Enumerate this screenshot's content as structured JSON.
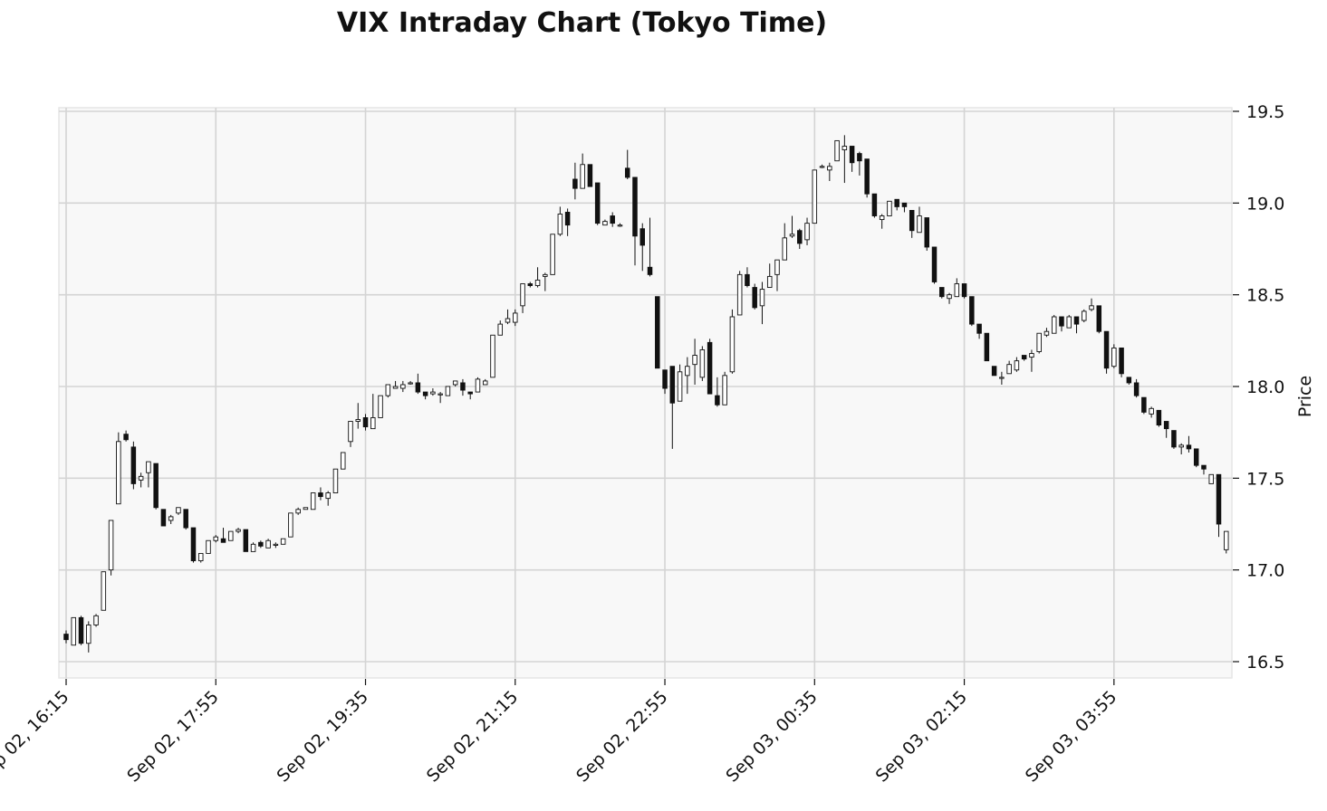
{
  "chart_data": {
    "type": "candlestick",
    "title": "VIX Intraday Chart (Tokyo Time)",
    "ylabel": "Price",
    "xlabel": "",
    "ylim": [
      16.4,
      19.52
    ],
    "yticks": [
      16.5,
      17.0,
      17.5,
      18.0,
      18.5,
      19.0,
      19.5
    ],
    "x_tick_labels": [
      "Sep 02, 16:15",
      "Sep 02, 17:55",
      "Sep 02, 19:35",
      "Sep 02, 21:15",
      "Sep 02, 22:55",
      "Sep 03, 00:35",
      "Sep 03, 02:15",
      "Sep 03, 03:55"
    ],
    "x_tick_indices": [
      0,
      20,
      40,
      60,
      80,
      100,
      120,
      140
    ],
    "interval_minutes": 5,
    "grid": true,
    "colors": {
      "up": "#ffffff",
      "down": "#111111",
      "edge": "#111111",
      "plot_bg": "#f8f8f8",
      "grid": "#d4d4d4"
    },
    "ohlc": [
      [
        16.65,
        16.67,
        16.6,
        16.62
      ],
      [
        16.59,
        16.74,
        16.59,
        16.74
      ],
      [
        16.74,
        16.75,
        16.59,
        16.6
      ],
      [
        16.6,
        16.72,
        16.55,
        16.7
      ],
      [
        16.7,
        16.76,
        16.69,
        16.75
      ],
      [
        16.78,
        16.99,
        16.78,
        16.99
      ],
      [
        17.0,
        17.27,
        16.97,
        17.27
      ],
      [
        17.36,
        17.75,
        17.36,
        17.7
      ],
      [
        17.74,
        17.76,
        17.7,
        17.71
      ],
      [
        17.67,
        17.7,
        17.44,
        17.47
      ],
      [
        17.49,
        17.53,
        17.45,
        17.51
      ],
      [
        17.53,
        17.59,
        17.45,
        17.59
      ],
      [
        17.58,
        17.58,
        17.33,
        17.34
      ],
      [
        17.33,
        17.33,
        17.24,
        17.24
      ],
      [
        17.27,
        17.3,
        17.25,
        17.29
      ],
      [
        17.31,
        17.34,
        17.3,
        17.34
      ],
      [
        17.33,
        17.33,
        17.22,
        17.23
      ],
      [
        17.23,
        17.23,
        17.04,
        17.05
      ],
      [
        17.05,
        17.09,
        17.04,
        17.09
      ],
      [
        17.09,
        17.16,
        17.09,
        17.16
      ],
      [
        17.16,
        17.19,
        17.15,
        17.18
      ],
      [
        17.17,
        17.23,
        17.15,
        17.15
      ],
      [
        17.16,
        17.21,
        17.16,
        17.21
      ],
      [
        17.21,
        17.23,
        17.2,
        17.22
      ],
      [
        17.22,
        17.22,
        17.1,
        17.1
      ],
      [
        17.1,
        17.15,
        17.1,
        17.14
      ],
      [
        17.15,
        17.16,
        17.12,
        17.13
      ],
      [
        17.12,
        17.17,
        17.12,
        17.16
      ],
      [
        17.14,
        17.15,
        17.12,
        17.14
      ],
      [
        17.14,
        17.17,
        17.14,
        17.17
      ],
      [
        17.18,
        17.31,
        17.18,
        17.31
      ],
      [
        17.31,
        17.34,
        17.3,
        17.33
      ],
      [
        17.33,
        17.34,
        17.33,
        17.34
      ],
      [
        17.33,
        17.42,
        17.33,
        17.42
      ],
      [
        17.42,
        17.45,
        17.38,
        17.4
      ],
      [
        17.39,
        17.43,
        17.35,
        17.42
      ],
      [
        17.42,
        17.55,
        17.42,
        17.55
      ],
      [
        17.55,
        17.64,
        17.55,
        17.64
      ],
      [
        17.7,
        17.81,
        17.67,
        17.81
      ],
      [
        17.81,
        17.91,
        17.77,
        17.82
      ],
      [
        17.83,
        17.85,
        17.76,
        17.78
      ],
      [
        17.77,
        17.96,
        17.77,
        17.83
      ],
      [
        17.83,
        17.95,
        17.83,
        17.95
      ],
      [
        17.95,
        18.01,
        17.94,
        18.01
      ],
      [
        17.99,
        18.03,
        17.99,
        18.0
      ],
      [
        17.99,
        18.03,
        17.97,
        18.01
      ],
      [
        18.02,
        18.03,
        18.01,
        18.02
      ],
      [
        18.02,
        18.07,
        17.96,
        17.97
      ],
      [
        17.97,
        17.97,
        17.93,
        17.95
      ],
      [
        17.96,
        17.99,
        17.95,
        17.97
      ],
      [
        17.96,
        17.97,
        17.91,
        17.96
      ],
      [
        17.95,
        18.0,
        17.95,
        18.0
      ],
      [
        18.01,
        18.03,
        18.0,
        18.03
      ],
      [
        18.02,
        18.04,
        17.95,
        17.98
      ],
      [
        17.97,
        17.97,
        17.93,
        17.96
      ],
      [
        17.97,
        18.05,
        17.97,
        18.04
      ],
      [
        18.01,
        18.04,
        18.01,
        18.03
      ],
      [
        18.05,
        18.28,
        18.05,
        18.28
      ],
      [
        18.28,
        18.36,
        18.28,
        18.34
      ],
      [
        18.35,
        18.42,
        18.34,
        18.37
      ],
      [
        18.35,
        18.42,
        18.33,
        18.4
      ],
      [
        18.44,
        18.56,
        18.4,
        18.56
      ],
      [
        18.56,
        18.57,
        18.54,
        18.55
      ],
      [
        18.55,
        18.65,
        18.54,
        18.58
      ],
      [
        18.6,
        18.62,
        18.52,
        18.61
      ],
      [
        18.61,
        18.83,
        18.61,
        18.83
      ],
      [
        18.83,
        18.98,
        18.82,
        18.94
      ],
      [
        18.95,
        18.97,
        18.82,
        18.88
      ],
      [
        19.13,
        19.22,
        19.02,
        19.08
      ],
      [
        19.08,
        19.27,
        19.08,
        19.21
      ],
      [
        19.21,
        19.21,
        19.09,
        19.09
      ],
      [
        19.11,
        19.11,
        18.88,
        18.89
      ],
      [
        18.88,
        18.91,
        18.88,
        18.9
      ],
      [
        18.93,
        18.95,
        18.87,
        18.89
      ],
      [
        18.88,
        18.89,
        18.87,
        18.88
      ],
      [
        19.19,
        19.29,
        19.13,
        19.14
      ],
      [
        19.14,
        19.14,
        18.66,
        18.82
      ],
      [
        18.86,
        18.89,
        18.63,
        18.77
      ],
      [
        18.65,
        18.92,
        18.6,
        18.61
      ],
      [
        18.49,
        18.49,
        18.1,
        18.1
      ],
      [
        18.09,
        18.09,
        17.96,
        17.99
      ],
      [
        18.11,
        18.11,
        17.66,
        17.91
      ],
      [
        17.92,
        18.12,
        17.92,
        18.08
      ],
      [
        18.06,
        18.16,
        17.96,
        18.11
      ],
      [
        18.12,
        18.26,
        18.01,
        18.17
      ],
      [
        18.05,
        18.22,
        18.03,
        18.2
      ],
      [
        18.24,
        18.26,
        17.96,
        17.96
      ],
      [
        17.95,
        18.05,
        17.89,
        17.9
      ],
      [
        17.9,
        18.08,
        17.9,
        18.06
      ],
      [
        18.08,
        18.42,
        18.07,
        18.38
      ],
      [
        18.39,
        18.63,
        18.39,
        18.61
      ],
      [
        18.61,
        18.65,
        18.54,
        18.55
      ],
      [
        18.54,
        18.56,
        18.42,
        18.43
      ],
      [
        18.44,
        18.57,
        18.34,
        18.53
      ],
      [
        18.54,
        18.67,
        18.54,
        18.6
      ],
      [
        18.61,
        18.69,
        18.52,
        18.69
      ],
      [
        18.69,
        18.89,
        18.69,
        18.81
      ],
      [
        18.82,
        18.93,
        18.81,
        18.83
      ],
      [
        18.85,
        18.86,
        18.75,
        18.78
      ],
      [
        18.8,
        18.92,
        18.77,
        18.89
      ],
      [
        18.89,
        19.18,
        18.89,
        19.18
      ],
      [
        19.2,
        19.21,
        19.19,
        19.2
      ],
      [
        19.18,
        19.22,
        19.12,
        19.2
      ],
      [
        19.23,
        19.34,
        19.23,
        19.34
      ],
      [
        19.29,
        19.37,
        19.11,
        19.31
      ],
      [
        19.31,
        19.31,
        19.17,
        19.22
      ],
      [
        19.27,
        19.28,
        19.15,
        19.23
      ],
      [
        19.24,
        19.24,
        19.03,
        19.05
      ],
      [
        19.05,
        19.05,
        18.92,
        18.93
      ],
      [
        18.91,
        18.94,
        18.86,
        18.93
      ],
      [
        18.93,
        19.01,
        18.93,
        19.01
      ],
      [
        19.02,
        19.02,
        18.96,
        18.98
      ],
      [
        19.0,
        19.0,
        18.95,
        18.98
      ],
      [
        18.96,
        18.96,
        18.81,
        18.85
      ],
      [
        18.84,
        18.98,
        18.84,
        18.93
      ],
      [
        18.92,
        18.92,
        18.74,
        18.76
      ],
      [
        18.76,
        18.76,
        18.56,
        18.57
      ],
      [
        18.54,
        18.54,
        18.48,
        18.49
      ],
      [
        18.48,
        18.51,
        18.45,
        18.5
      ],
      [
        18.49,
        18.59,
        18.49,
        18.56
      ],
      [
        18.56,
        18.56,
        18.48,
        18.49
      ],
      [
        18.49,
        18.49,
        18.33,
        18.34
      ],
      [
        18.34,
        18.34,
        18.26,
        18.29
      ],
      [
        18.29,
        18.29,
        18.14,
        18.14
      ],
      [
        18.11,
        18.11,
        18.06,
        18.06
      ],
      [
        18.05,
        18.08,
        18.01,
        18.05
      ],
      [
        18.07,
        18.14,
        18.07,
        18.12
      ],
      [
        18.09,
        18.16,
        18.08,
        18.14
      ],
      [
        18.17,
        18.17,
        18.14,
        18.15
      ],
      [
        18.16,
        18.2,
        18.08,
        18.18
      ],
      [
        18.19,
        18.29,
        18.18,
        18.29
      ],
      [
        18.28,
        18.32,
        18.27,
        18.3
      ],
      [
        18.29,
        18.39,
        18.29,
        18.38
      ],
      [
        18.38,
        18.38,
        18.3,
        18.33
      ],
      [
        18.32,
        18.39,
        18.32,
        18.38
      ],
      [
        18.38,
        18.38,
        18.29,
        18.34
      ],
      [
        18.36,
        18.42,
        18.35,
        18.41
      ],
      [
        18.42,
        18.48,
        18.41,
        18.44
      ],
      [
        18.44,
        18.44,
        18.29,
        18.3
      ],
      [
        18.3,
        18.3,
        18.07,
        18.1
      ],
      [
        18.11,
        18.23,
        18.1,
        18.21
      ],
      [
        18.21,
        18.21,
        18.05,
        18.07
      ],
      [
        18.05,
        18.05,
        18.01,
        18.02
      ],
      [
        18.02,
        18.04,
        17.94,
        17.95
      ],
      [
        17.94,
        17.94,
        17.85,
        17.86
      ],
      [
        17.85,
        17.89,
        17.83,
        17.88
      ],
      [
        17.87,
        17.87,
        17.78,
        17.79
      ],
      [
        17.81,
        17.81,
        17.72,
        17.77
      ],
      [
        17.76,
        17.76,
        17.66,
        17.67
      ],
      [
        17.67,
        17.69,
        17.63,
        17.68
      ],
      [
        17.68,
        17.73,
        17.64,
        17.66
      ],
      [
        17.66,
        17.66,
        17.56,
        17.57
      ],
      [
        17.57,
        17.57,
        17.52,
        17.55
      ],
      [
        17.47,
        17.52,
        17.47,
        17.52
      ],
      [
        17.52,
        17.52,
        17.18,
        17.25
      ],
      [
        17.11,
        17.21,
        17.09,
        17.21
      ]
    ]
  }
}
